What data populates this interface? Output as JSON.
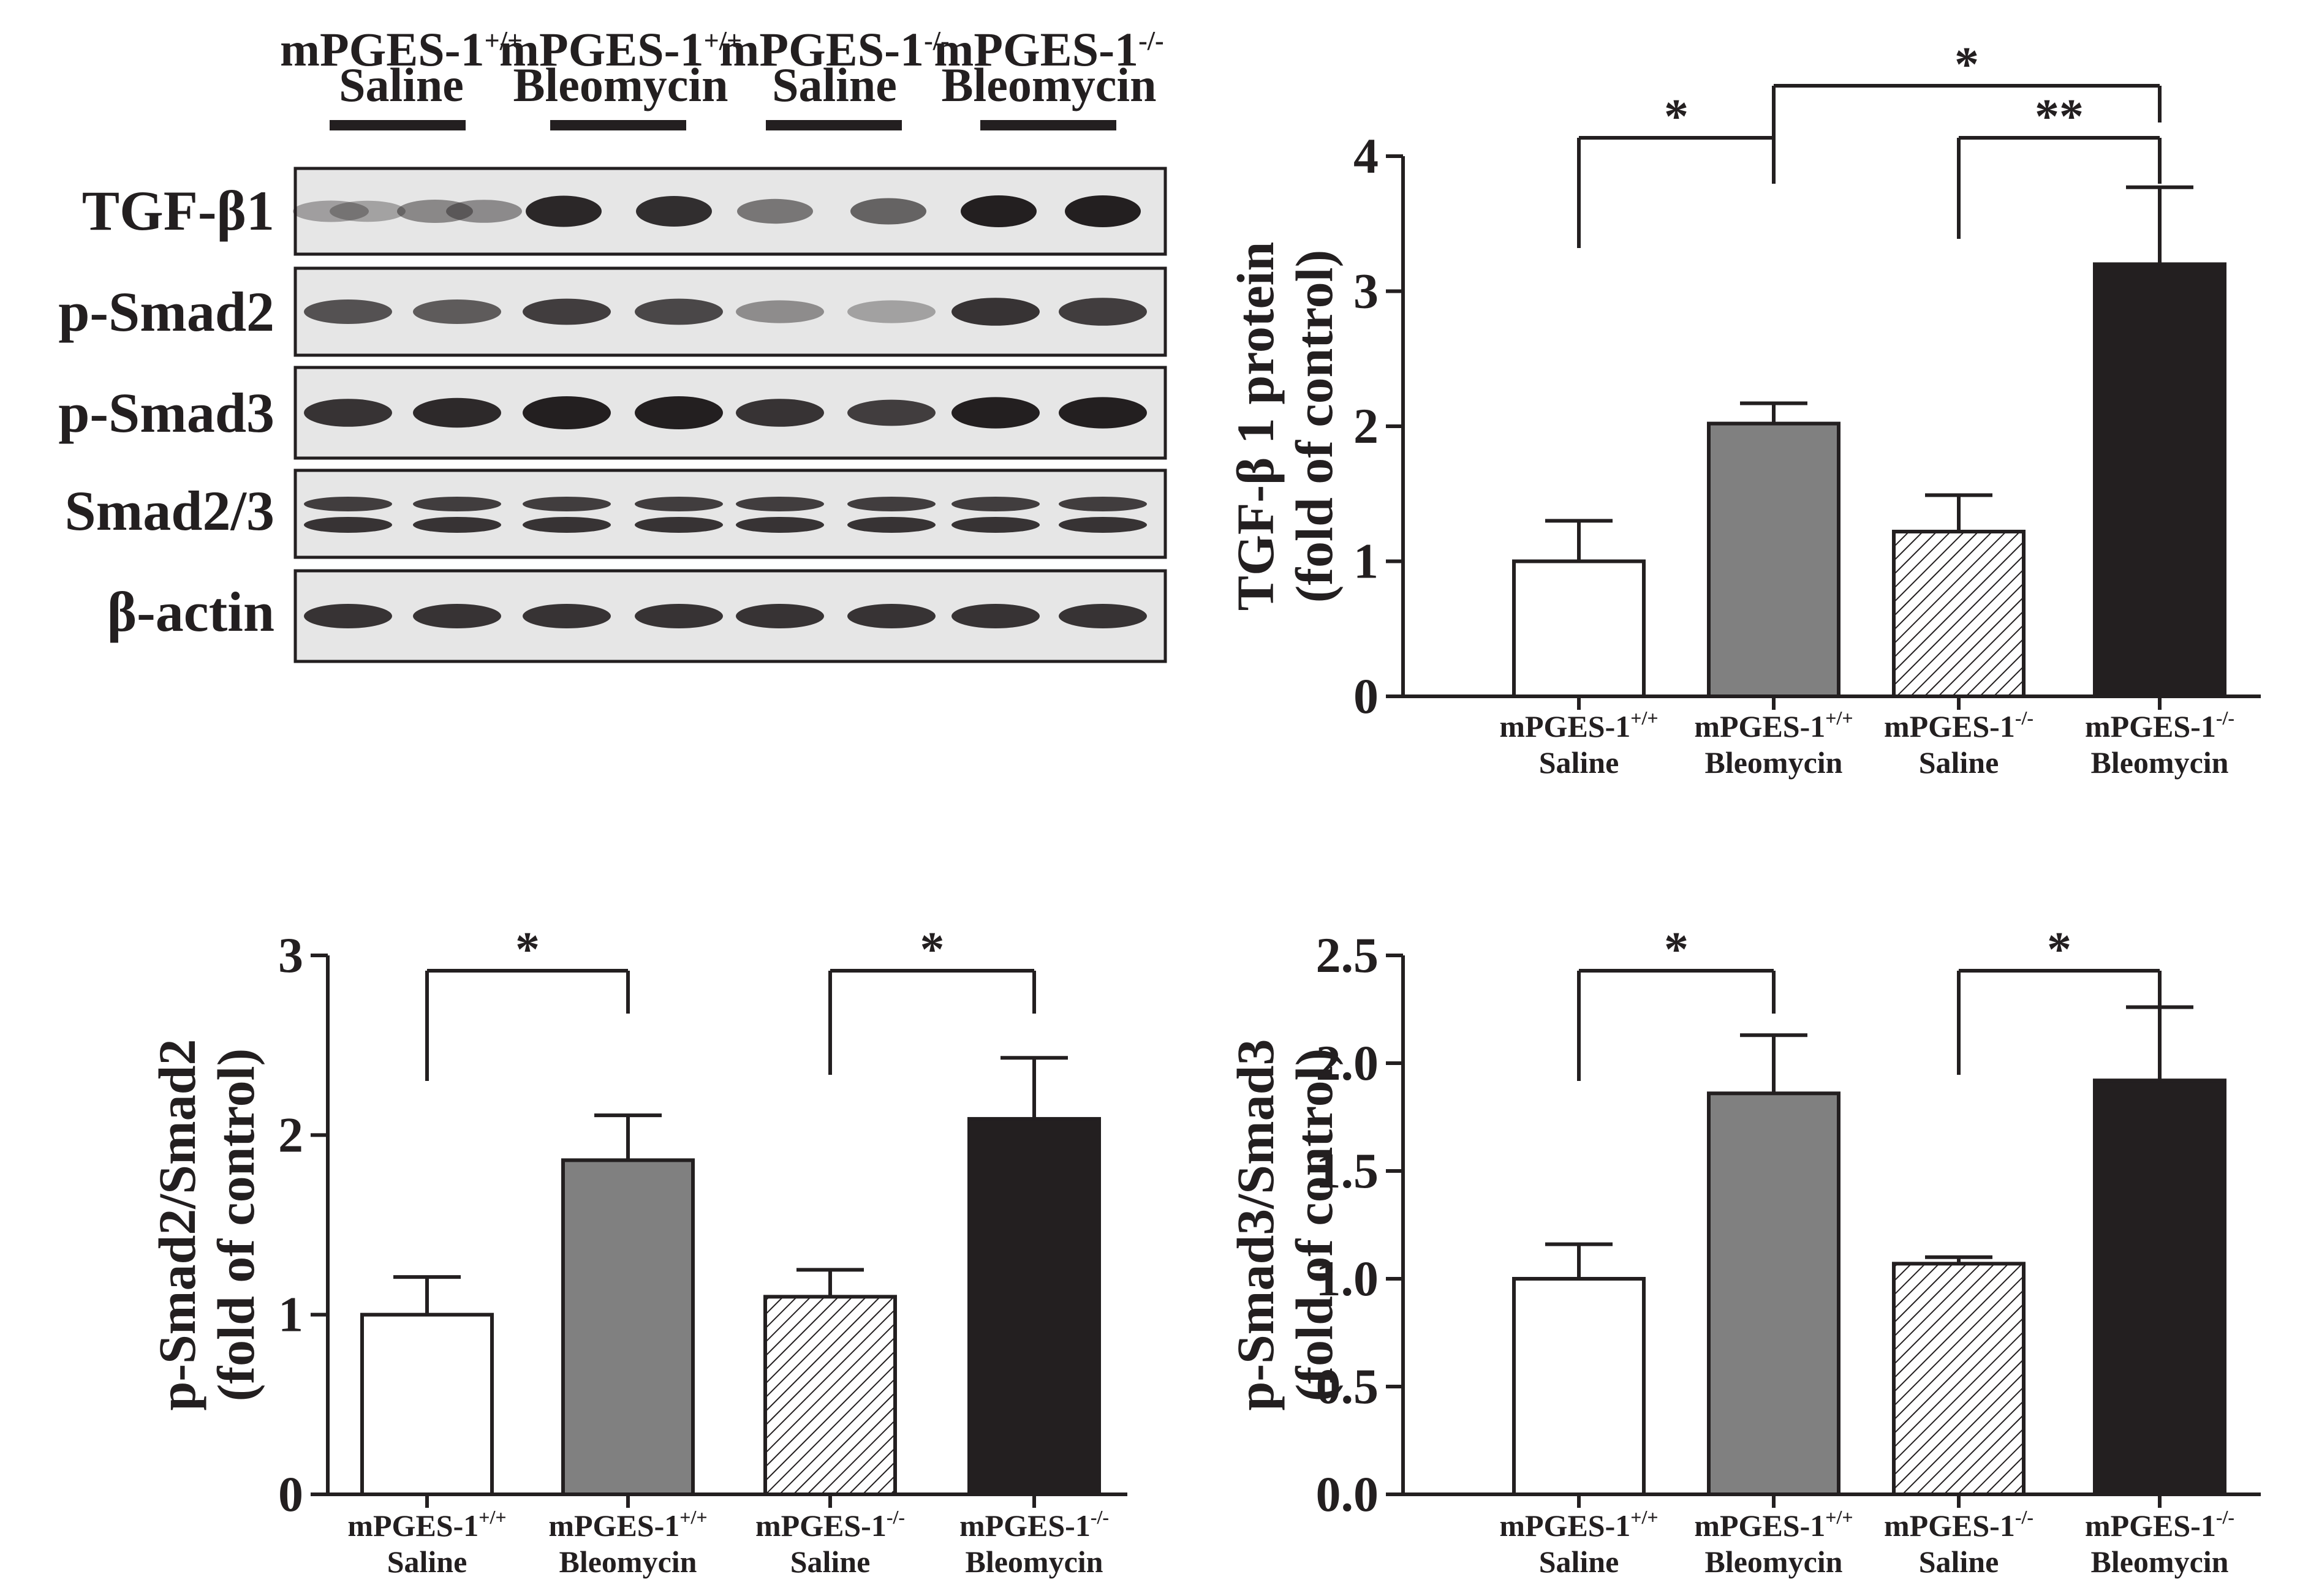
{
  "figure": {
    "blot": {
      "groups": [
        {
          "name": "mPGES-1",
          "superscript": "+/+",
          "treatment": "Saline"
        },
        {
          "name": "mPGES-1",
          "superscript": "+/+",
          "treatment": "Bleomycin"
        },
        {
          "name": "mPGES-1",
          "superscript": "-/-",
          "treatment": "Saline"
        },
        {
          "name": "mPGES-1",
          "superscript": "-/-",
          "treatment": "Bleomycin"
        }
      ],
      "rows": [
        {
          "label": "TGF-β1"
        },
        {
          "label": "p-Smad2"
        },
        {
          "label": "p-Smad3"
        },
        {
          "label": "Smad2/3"
        },
        {
          "label": "β-actin"
        }
      ]
    }
  },
  "colors": {
    "wt_saline": "#ffffff",
    "wt_bleomycin": "#808080",
    "ko_saline": "hatched",
    "ko_bleomycin": "#231f20",
    "ink": "#231f20"
  },
  "chart_data": [
    {
      "id": "tgf",
      "type": "bar",
      "ylabel_line1": "TGF-β 1 protein",
      "ylabel_line2": "(fold of control)",
      "ylim": [
        0,
        4
      ],
      "yticks": [
        "0",
        "1",
        "2",
        "3",
        "4"
      ],
      "categories": [
        {
          "name": "mPGES-1",
          "superscript": "+/+",
          "treatment": "Saline"
        },
        {
          "name": "mPGES-1",
          "superscript": "+/+",
          "treatment": "Bleomycin"
        },
        {
          "name": "mPGES-1",
          "superscript": "-/-",
          "treatment": "Saline"
        },
        {
          "name": "mPGES-1",
          "superscript": "-/-",
          "treatment": "Bleomycin"
        }
      ],
      "values": [
        1.0,
        2.02,
        1.22,
        3.2
      ],
      "errors": [
        0.3,
        0.15,
        0.27,
        0.57
      ],
      "significance": [
        {
          "label": "*",
          "from": 0,
          "to": 1
        },
        {
          "label": "**",
          "from": 2,
          "to": 3
        },
        {
          "label": "*",
          "from": 1,
          "to": 3
        }
      ]
    },
    {
      "id": "psmad2",
      "type": "bar",
      "ylabel_line1": "p-Smad2/Smad2",
      "ylabel_line2": "(fold of control)",
      "ylim": [
        0,
        3
      ],
      "yticks": [
        "0",
        "1",
        "2",
        "3"
      ],
      "categories": [
        {
          "name": "mPGES-1",
          "superscript": "+/+",
          "treatment": "Saline"
        },
        {
          "name": "mPGES-1",
          "superscript": "+/+",
          "treatment": "Bleomycin"
        },
        {
          "name": "mPGES-1",
          "superscript": "-/-",
          "treatment": "Saline"
        },
        {
          "name": "mPGES-1",
          "superscript": "-/-",
          "treatment": "Bleomycin"
        }
      ],
      "values": [
        1.0,
        1.86,
        1.1,
        2.09
      ],
      "errors": [
        0.21,
        0.25,
        0.15,
        0.34
      ],
      "significance": [
        {
          "label": "*",
          "from": 0,
          "to": 1
        },
        {
          "label": "*",
          "from": 2,
          "to": 3
        }
      ]
    },
    {
      "id": "psmad3",
      "type": "bar",
      "ylabel_line1": "p-Smad3/Smad3",
      "ylabel_line2": "(fold of control)",
      "ylim": [
        0,
        2.5
      ],
      "yticks": [
        "0.0",
        "0.5",
        "1.0",
        "1.5",
        "2.0",
        "2.5"
      ],
      "categories": [
        {
          "name": "mPGES-1",
          "superscript": "+/+",
          "treatment": "Saline"
        },
        {
          "name": "mPGES-1",
          "superscript": "+/+",
          "treatment": "Bleomycin"
        },
        {
          "name": "mPGES-1",
          "superscript": "-/-",
          "treatment": "Saline"
        },
        {
          "name": "mPGES-1",
          "superscript": "-/-",
          "treatment": "Bleomycin"
        }
      ],
      "values": [
        1.0,
        1.86,
        1.07,
        1.92
      ],
      "errors": [
        0.16,
        0.27,
        0.03,
        0.34
      ],
      "significance": [
        {
          "label": "*",
          "from": 0,
          "to": 1
        },
        {
          "label": "*",
          "from": 2,
          "to": 3
        }
      ]
    }
  ]
}
